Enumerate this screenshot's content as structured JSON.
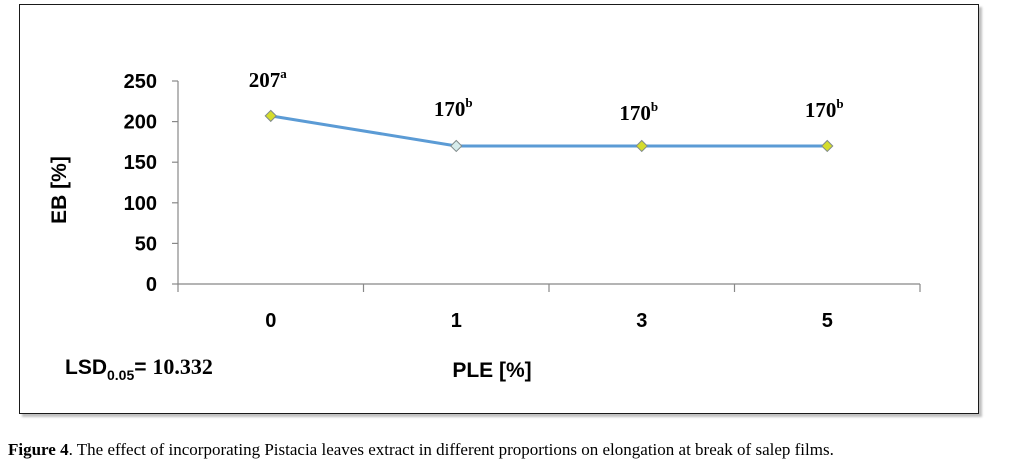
{
  "chart_data": {
    "type": "line",
    "categories": [
      "0",
      "1",
      "3",
      "5"
    ],
    "values": [
      207,
      170,
      170,
      170
    ],
    "point_labels": [
      {
        "value": "207",
        "letter": "a"
      },
      {
        "value": "170",
        "letter": "b"
      },
      {
        "value": "170",
        "letter": "b"
      },
      {
        "value": "170",
        "letter": "b"
      }
    ],
    "xlabel": "PLE [%]",
    "ylabel": "EB [%]",
    "ylim": [
      0,
      250
    ],
    "yticks": [
      "0",
      "50",
      "100",
      "150",
      "200",
      "250"
    ],
    "line_color": "#5b9bd5",
    "marker_color": "#d4dc2c",
    "marker_highlight_color": "#d6ecec",
    "grid": false
  },
  "lsd": {
    "prefix": "LSD",
    "subscript": "0.05",
    "equals": "=",
    "value": "10.332"
  },
  "caption": {
    "label": "Figure 4",
    "text": ". The effect of incorporating Pistacia leaves extract in different proportions on elongation at break of salep films."
  }
}
